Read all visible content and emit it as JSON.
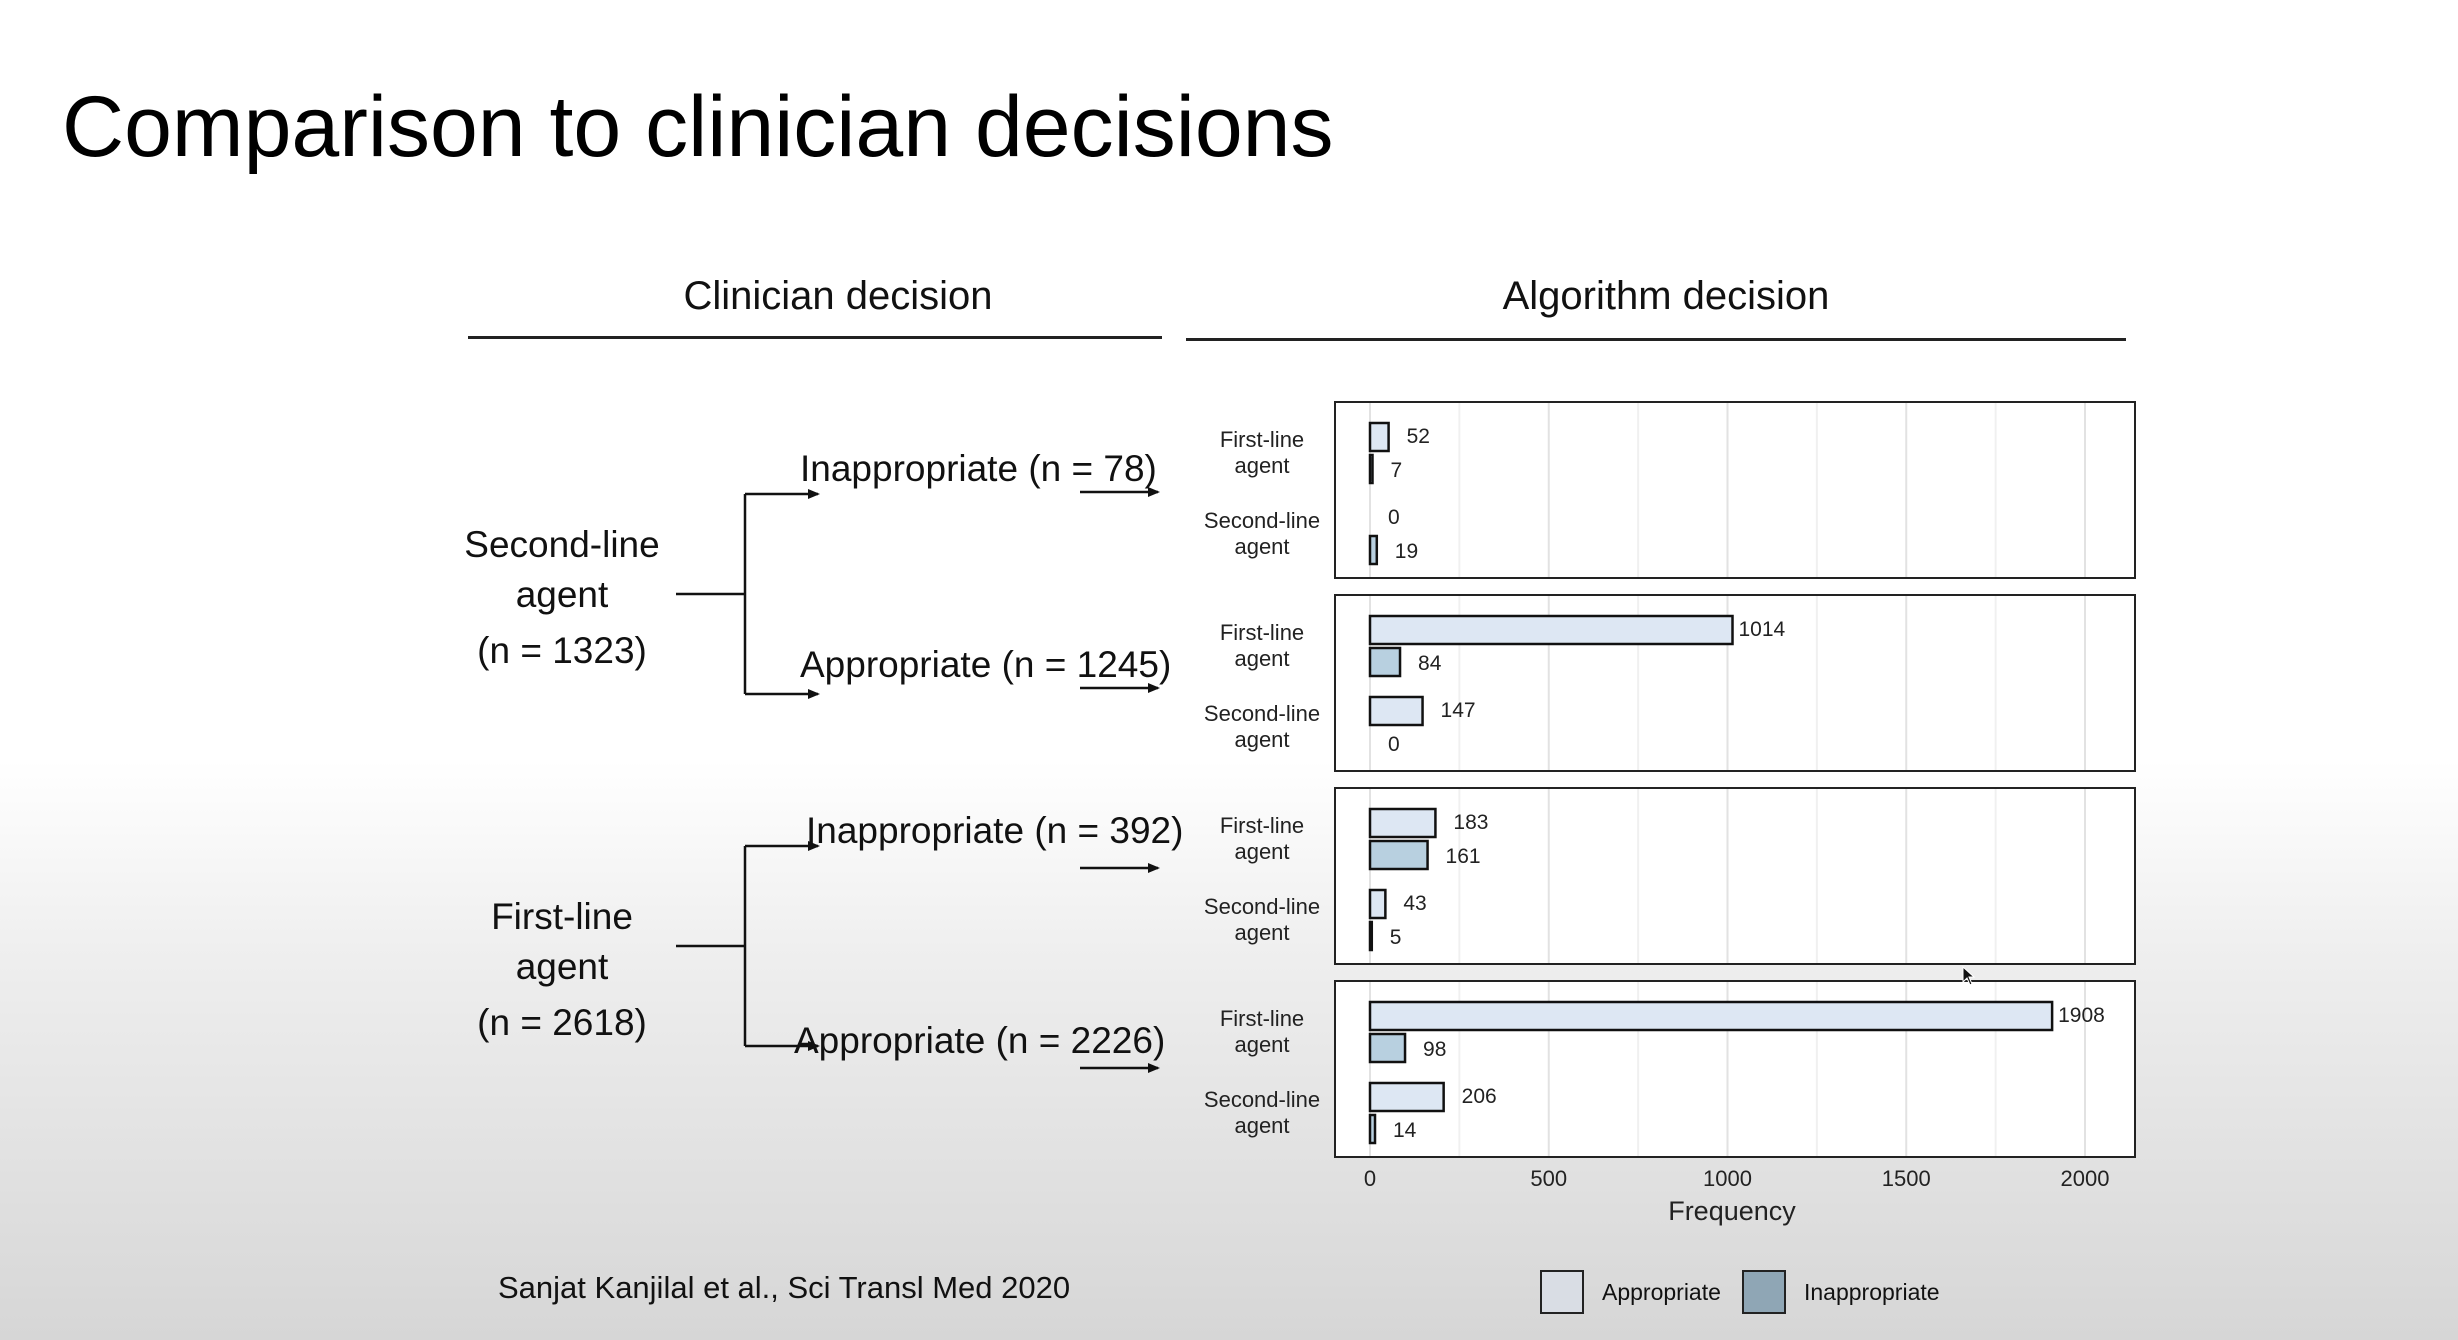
{
  "slide": {
    "title": "Comparison to clinician decisions",
    "citation": "Sanjat Kanjilal et al., Sci Transl Med 2020"
  },
  "headers": {
    "clinician": "Clinician decision",
    "algorithm": "Algorithm decision"
  },
  "tree": {
    "groups": [
      {
        "label_line1": "Second-line",
        "label_line2": "agent",
        "n": "(n = 1323)",
        "branches": [
          {
            "label": "Inappropriate",
            "n": "(n = 78)"
          },
          {
            "label": "Appropriate",
            "n": "(n = 1245)"
          }
        ]
      },
      {
        "label_line1": "First-line",
        "label_line2": "agent",
        "n": "(n = 2618)",
        "branches": [
          {
            "label": "Inappropriate",
            "n": "(n = 392)"
          },
          {
            "label": "Appropriate",
            "n": "(n = 2226)"
          }
        ]
      }
    ]
  },
  "chart_data": {
    "type": "bar",
    "orientation": "horizontal",
    "xlabel": "Frequency",
    "xlim": [
      0,
      2000
    ],
    "xticks": [
      0,
      500,
      1000,
      1500,
      2000
    ],
    "grid": true,
    "legend_position": "bottom-right",
    "series": [
      {
        "name": "Appropriate",
        "color": "#dde7f3"
      },
      {
        "name": "Inappropriate",
        "color": "#b8d0e0"
      }
    ],
    "panels": [
      {
        "rows": [
          {
            "label_line1": "First-line",
            "label_line2": "agent",
            "appropriate": 52,
            "inappropriate": 7
          },
          {
            "label_line1": "Second-line",
            "label_line2": "agent",
            "appropriate": 0,
            "inappropriate": 19
          }
        ]
      },
      {
        "rows": [
          {
            "label_line1": "First-line",
            "label_line2": "agent",
            "appropriate": 1014,
            "inappropriate": 84
          },
          {
            "label_line1": "Second-line",
            "label_line2": "agent",
            "appropriate": 147,
            "inappropriate": 0
          }
        ]
      },
      {
        "rows": [
          {
            "label_line1": "First-line",
            "label_line2": "agent",
            "appropriate": 183,
            "inappropriate": 161
          },
          {
            "label_line1": "Second-line",
            "label_line2": "agent",
            "appropriate": 43,
            "inappropriate": 5
          }
        ]
      },
      {
        "rows": [
          {
            "label_line1": "First-line",
            "label_line2": "agent",
            "appropriate": 1908,
            "inappropriate": 98
          },
          {
            "label_line1": "Second-line",
            "label_line2": "agent",
            "appropriate": 206,
            "inappropriate": 14
          }
        ]
      }
    ]
  },
  "legend": {
    "appropriate": "Appropriate",
    "inappropriate": "Inappropriate",
    "appropriate_color": "#d9dde4",
    "inappropriate_color": "#8fa6b5"
  }
}
